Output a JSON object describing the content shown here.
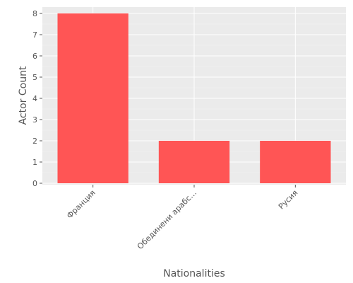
{
  "chart_data": {
    "type": "bar",
    "categories": [
      "Франция",
      "Обединени арабс…",
      "Русия"
    ],
    "values": [
      8,
      2,
      2
    ],
    "title": "",
    "xlabel": "Nationalities",
    "ylabel": "Actor Count",
    "ylim": [
      0,
      8.3
    ],
    "yticks": [
      0,
      1,
      2,
      3,
      4,
      5,
      6,
      7,
      8
    ],
    "grid": true,
    "legend": "none",
    "colors": {
      "bar": "#ff5555",
      "panel_background": "#ebebeb",
      "grid": "#ffffff",
      "text": "#555555"
    }
  }
}
